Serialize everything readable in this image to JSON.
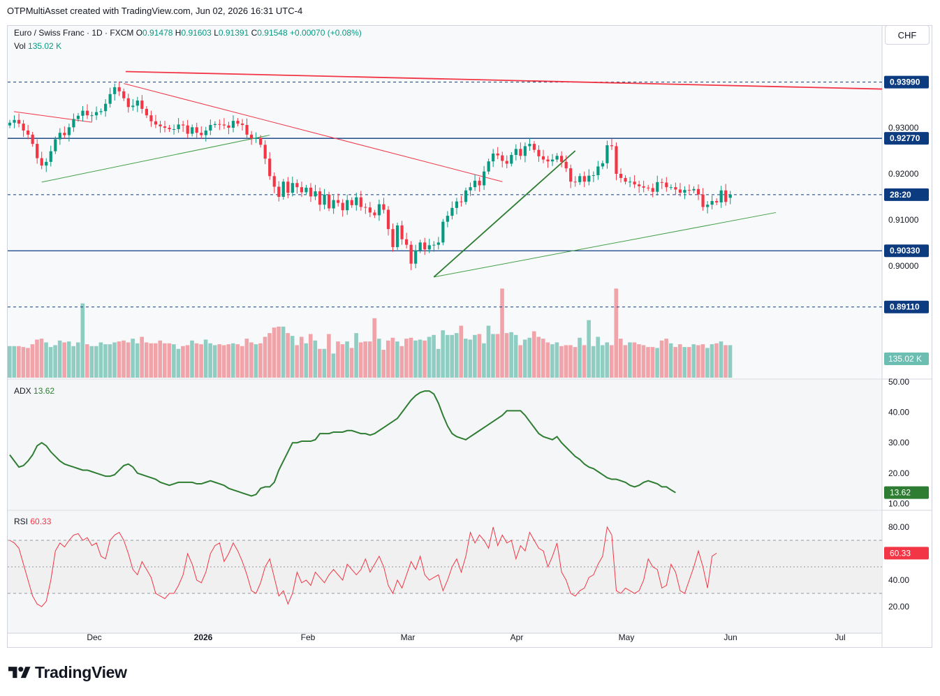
{
  "header": {
    "credit": "OTPMultiAsset created with TradingView.com, Jun 02, 2026 16:31 UTC-4"
  },
  "instrument": {
    "title": "Euro / Swiss Franc · 1D · FXCM",
    "o_label": "O",
    "o": "0.91478",
    "h_label": "H",
    "h": "0.91603",
    "l_label": "L",
    "l": "0.91391",
    "c_label": "C",
    "c": "0.91548",
    "change": "+0.00070 (+0.08%)",
    "vol_label": "Vol",
    "vol": "135.02 K",
    "currency": "CHF"
  },
  "price_axis": {
    "ticks": [
      "0.93000",
      "0.92000",
      "0.91000",
      "0.90000"
    ],
    "levels": [
      {
        "value": 0.9399,
        "label": "0.93990",
        "style": "dashed"
      },
      {
        "value": 0.9277,
        "label": "0.92770",
        "style": "solid"
      },
      {
        "value": 0.9033,
        "label": "0.90330",
        "style": "solid"
      },
      {
        "value": 0.8911,
        "label": "0.89110",
        "style": "dashed"
      }
    ],
    "countdown_label": "28:20",
    "volume_label": "135.02 K"
  },
  "adx": {
    "label": "ADX",
    "value": "13.62",
    "ticks": [
      "50.00",
      "40.00",
      "30.00",
      "20.00",
      "10.00"
    ]
  },
  "rsi": {
    "label": "RSI",
    "value": "60.33",
    "ticks": [
      "80.00",
      "60.00",
      "40.00",
      "20.00"
    ]
  },
  "time_axis": [
    "Dec",
    "2026",
    "Feb",
    "Mar",
    "Apr",
    "May",
    "Jun",
    "Jul"
  ],
  "brand": "TradingView",
  "colors": {
    "up": "#089981",
    "down": "#f23645",
    "adx": "#2e7d32",
    "rsi": "#f23645",
    "level": "#0c3b80"
  },
  "chart_data": [
    {
      "type": "candlestick",
      "title": "Euro / Swiss Franc · 1D · FXCM",
      "ylim": [
        0.8911,
        0.9399
      ],
      "close": [
        0.9311,
        0.9317,
        0.9309,
        0.9294,
        0.9285,
        0.9265,
        0.9234,
        0.9218,
        0.9226,
        0.9249,
        0.9275,
        0.9289,
        0.9284,
        0.9301,
        0.9319,
        0.9326,
        0.9337,
        0.9327,
        0.9327,
        0.9334,
        0.9336,
        0.9352,
        0.9373,
        0.9388,
        0.9379,
        0.9364,
        0.9345,
        0.9348,
        0.9359,
        0.9341,
        0.9327,
        0.9314,
        0.9307,
        0.9303,
        0.93,
        0.9297,
        0.9297,
        0.9307,
        0.9305,
        0.9287,
        0.9301,
        0.9289,
        0.9284,
        0.9294,
        0.9306,
        0.9308,
        0.9307,
        0.9305,
        0.93,
        0.9315,
        0.9309,
        0.9306,
        0.9285,
        0.9277,
        0.9278,
        0.9263,
        0.9233,
        0.9195,
        0.9172,
        0.915,
        0.9183,
        0.9159,
        0.918,
        0.9171,
        0.916,
        0.917,
        0.9151,
        0.9162,
        0.9133,
        0.9155,
        0.9125,
        0.9143,
        0.9137,
        0.9121,
        0.9143,
        0.9132,
        0.9149,
        0.9128,
        0.9127,
        0.9116,
        0.911,
        0.9134,
        0.9122,
        0.908,
        0.9041,
        0.9088,
        0.9058,
        0.9046,
        0.9005,
        0.9034,
        0.9051,
        0.9036,
        0.9045,
        0.9046,
        0.9051,
        0.9096,
        0.9109,
        0.9126,
        0.914,
        0.9139,
        0.9164,
        0.9171,
        0.9185,
        0.9175,
        0.9205,
        0.9227,
        0.9244,
        0.924,
        0.9228,
        0.9222,
        0.9241,
        0.9254,
        0.9239,
        0.926,
        0.9265,
        0.9252,
        0.9238,
        0.9231,
        0.9227,
        0.9231,
        0.9239,
        0.9226,
        0.9212,
        0.9183,
        0.9182,
        0.9195,
        0.9183,
        0.9196,
        0.9197,
        0.9216,
        0.9223,
        0.9262,
        0.926,
        0.92,
        0.9191,
        0.9183,
        0.9183,
        0.9177,
        0.9173,
        0.917,
        0.9169,
        0.9161,
        0.9182,
        0.9181,
        0.9171,
        0.9171,
        0.9166,
        0.9159,
        0.9165,
        0.9164,
        0.9167,
        0.9155,
        0.9128,
        0.9133,
        0.9141,
        0.9138,
        0.9164,
        0.9139,
        0.9155
      ],
      "open": [
        0.9305,
        0.9311,
        0.9317,
        0.9309,
        0.9294,
        0.9285,
        0.9265,
        0.9234,
        0.9218,
        0.9226,
        0.9249,
        0.9275,
        0.9289,
        0.9284,
        0.9301,
        0.9319,
        0.9326,
        0.9337,
        0.9327,
        0.9327,
        0.9334,
        0.9336,
        0.9352,
        0.9373,
        0.9388,
        0.9379,
        0.9364,
        0.9345,
        0.9348,
        0.9359,
        0.9341,
        0.9327,
        0.9314,
        0.9307,
        0.9303,
        0.93,
        0.9297,
        0.9297,
        0.9307,
        0.9305,
        0.9287,
        0.9301,
        0.9289,
        0.9284,
        0.9294,
        0.9306,
        0.9308,
        0.9307,
        0.9305,
        0.93,
        0.9315,
        0.9309,
        0.9306,
        0.9285,
        0.9277,
        0.9278,
        0.9263,
        0.9233,
        0.9195,
        0.9172,
        0.915,
        0.9183,
        0.9159,
        0.918,
        0.9171,
        0.916,
        0.917,
        0.9151,
        0.9162,
        0.9133,
        0.9155,
        0.9125,
        0.9143,
        0.9137,
        0.9121,
        0.9143,
        0.9132,
        0.9149,
        0.9128,
        0.9127,
        0.9116,
        0.911,
        0.9134,
        0.9122,
        0.908,
        0.9041,
        0.9088,
        0.9058,
        0.9046,
        0.9005,
        0.9034,
        0.9051,
        0.9036,
        0.9045,
        0.9046,
        0.9051,
        0.9096,
        0.9109,
        0.9126,
        0.914,
        0.9139,
        0.9164,
        0.9171,
        0.9185,
        0.9175,
        0.9205,
        0.9227,
        0.9244,
        0.924,
        0.9228,
        0.9222,
        0.9241,
        0.9254,
        0.9239,
        0.926,
        0.9265,
        0.9252,
        0.9238,
        0.9231,
        0.9227,
        0.9231,
        0.9239,
        0.9226,
        0.9212,
        0.9183,
        0.9182,
        0.9195,
        0.9183,
        0.9196,
        0.9197,
        0.9216,
        0.9223,
        0.9262,
        0.926,
        0.92,
        0.9191,
        0.9183,
        0.9183,
        0.9177,
        0.9173,
        0.917,
        0.9169,
        0.9161,
        0.9182,
        0.9181,
        0.9171,
        0.9171,
        0.9166,
        0.9159,
        0.9165,
        0.9164,
        0.9167,
        0.9155,
        0.9128,
        0.9133,
        0.9141,
        0.9138,
        0.9164,
        0.9148
      ],
      "volume": [
        34,
        34,
        34,
        33,
        32,
        36,
        41,
        42,
        38,
        33,
        35,
        40,
        38,
        39,
        34,
        38,
        80,
        36,
        34,
        34,
        38,
        36,
        36,
        38,
        39,
        40,
        38,
        42,
        37,
        44,
        38,
        37,
        37,
        40,
        37,
        37,
        36,
        31,
        34,
        35,
        40,
        37,
        36,
        41,
        37,
        35,
        36,
        35,
        36,
        37,
        36,
        34,
        42,
        38,
        36,
        37,
        44,
        48,
        54,
        55,
        55,
        48,
        45,
        35,
        44,
        37,
        47,
        40,
        31,
        31,
        47,
        26,
        39,
        36,
        39,
        32,
        48,
        38,
        39,
        39,
        64,
        42,
        30,
        40,
        43,
        39,
        34,
        42,
        43,
        40,
        41,
        40,
        44,
        46,
        31,
        51,
        46,
        46,
        48,
        56,
        42,
        41,
        46,
        47,
        37,
        56,
        47,
        47,
        96,
        48,
        49,
        46,
        35,
        41,
        43,
        50,
        44,
        42,
        38,
        36,
        38,
        34,
        35,
        35,
        33,
        43,
        35,
        62,
        34,
        44,
        35,
        38,
        35,
        96,
        42,
        35,
        38,
        38,
        36,
        35,
        33,
        33,
        32,
        40,
        42,
        37,
        33,
        36,
        33,
        33,
        36,
        35,
        36,
        32,
        36,
        37,
        39,
        35,
        35
      ],
      "trendlines": [
        {
          "from": 0.9335,
          "to": 0.9312,
          "color": "#f23645"
        },
        {
          "from": 0.9396,
          "to": 0.9183,
          "color": "#f23645"
        },
        {
          "from": 0.9422,
          "to": 0.9384,
          "color": "#f23645"
        },
        {
          "from": 0.9182,
          "to": 0.9284,
          "color": "#43a047"
        },
        {
          "from": 0.8976,
          "to": 0.9116,
          "color": "#43a047"
        },
        {
          "from": 0.8976,
          "to": 0.925,
          "color": "#2e7d32"
        }
      ]
    },
    {
      "type": "line",
      "series": [
        {
          "name": "ADX",
          "values": [
            26,
            24,
            22,
            22.5,
            24,
            26,
            29,
            30,
            29,
            27,
            25.5,
            24,
            23,
            22.5,
            22,
            21.5,
            21,
            21,
            20.5,
            20,
            19.5,
            19,
            19,
            19.5,
            21,
            22.5,
            23,
            22,
            20,
            19.5,
            19,
            18.5,
            18,
            17,
            16.5,
            16,
            16.5,
            17,
            17,
            17,
            17,
            16.5,
            16.5,
            17,
            17.5,
            17,
            16.5,
            16,
            15,
            14.5,
            14,
            13.5,
            13,
            12.5,
            13,
            15,
            15.5,
            15.5,
            17,
            21,
            24,
            27,
            30,
            30,
            30.5,
            30.5,
            30.5,
            31,
            33,
            33,
            33,
            33.5,
            33.5,
            33.5,
            34,
            34,
            33.5,
            33,
            33,
            32.5,
            33,
            34,
            35,
            36,
            37,
            38,
            40,
            42,
            44,
            45.5,
            46.5,
            47,
            47,
            46,
            43,
            39,
            35.5,
            33,
            32,
            31.5,
            31,
            32,
            33,
            34,
            35,
            36,
            37,
            38,
            39,
            40.5,
            40.5,
            40.5,
            40.5,
            39,
            37,
            35,
            33,
            32,
            31.5,
            31,
            32,
            30,
            28.5,
            27,
            25.5,
            24.5,
            23,
            22,
            21.5,
            20.5,
            19.5,
            18.5,
            18,
            18,
            17.5,
            17,
            16,
            15.5,
            16,
            17,
            17.5,
            17,
            16.5,
            15.5,
            15.5,
            14.5,
            13.6
          ]
        }
      ]
    },
    {
      "type": "line",
      "series": [
        {
          "name": "RSI",
          "values": [
            70,
            68,
            64,
            52,
            40,
            28,
            22,
            20,
            24,
            40,
            62,
            68,
            65,
            70,
            74,
            75,
            70,
            72,
            66,
            68,
            58,
            56,
            70,
            74,
            76,
            70,
            60,
            48,
            44,
            54,
            48,
            42,
            30,
            28,
            26,
            30,
            30,
            36,
            44,
            60,
            52,
            40,
            38,
            46,
            60,
            66,
            68,
            54,
            60,
            68,
            62,
            54,
            44,
            32,
            30,
            38,
            50,
            56,
            42,
            28,
            32,
            22,
            30,
            46,
            38,
            40,
            36,
            46,
            42,
            38,
            44,
            48,
            44,
            40,
            52,
            48,
            44,
            48,
            56,
            46,
            52,
            58,
            50,
            36,
            30,
            40,
            34,
            44,
            54,
            48,
            58,
            44,
            40,
            42,
            44,
            32,
            40,
            50,
            56,
            46,
            58,
            76,
            68,
            74,
            70,
            64,
            80,
            66,
            74,
            68,
            70,
            56,
            66,
            62,
            76,
            70,
            64,
            62,
            50,
            58,
            68,
            46,
            40,
            30,
            28,
            32,
            34,
            42,
            44,
            52,
            58,
            80,
            74,
            32,
            30,
            34,
            32,
            30,
            32,
            40,
            56,
            50,
            48,
            34,
            36,
            52,
            46,
            32,
            30,
            40,
            50,
            62,
            50,
            34,
            58,
            60.33
          ]
        }
      ]
    }
  ]
}
